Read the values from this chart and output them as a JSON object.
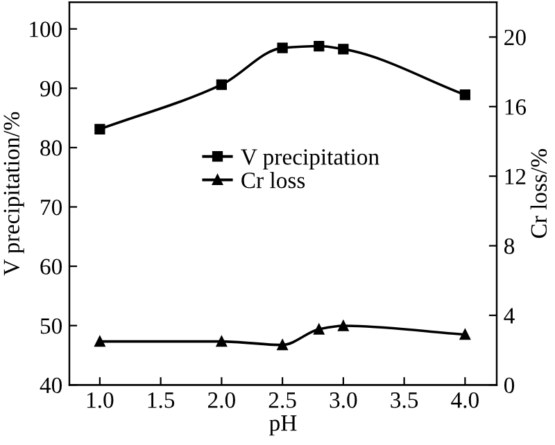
{
  "chart_data": {
    "type": "line",
    "xlabel": "pH",
    "ylabel": "V precipitation/%",
    "y2label": "Cr loss/%",
    "xlim": [
      0.75,
      4.26
    ],
    "xticks": [
      {
        "value": 1.0,
        "label": "1.0"
      },
      {
        "value": 1.5,
        "label": "1.5"
      },
      {
        "value": 2.0,
        "label": "2.0"
      },
      {
        "value": 2.5,
        "label": "2.5"
      },
      {
        "value": 3.0,
        "label": "3.0"
      },
      {
        "value": 3.5,
        "label": "3.5"
      },
      {
        "value": 4.0,
        "label": "4.0"
      }
    ],
    "ylim": [
      40,
      104.5
    ],
    "yticks": [
      40,
      50,
      60,
      70,
      80,
      90,
      100
    ],
    "y2lim": [
      0,
      22
    ],
    "y2ticks": [
      0,
      4,
      8,
      12,
      16,
      20
    ],
    "grid": false,
    "legend": "center",
    "line_style": "solid",
    "series": [
      {
        "name": "V precipitation",
        "color": "#000000",
        "marker": "square",
        "x": [
          1.0,
          2.0,
          2.5,
          2.8,
          3.0,
          4.0
        ],
        "values": [
          83.1,
          90.6,
          96.8,
          97.1,
          96.6,
          88.9
        ]
      },
      {
        "name": "Cr loss",
        "color": "#000000",
        "marker": "triangle",
        "axis": "y2",
        "x": [
          1.0,
          2.0,
          2.5,
          2.8,
          3.0,
          4.0
        ],
        "values": [
          2.5,
          2.5,
          2.3,
          3.2,
          3.4,
          2.9
        ]
      }
    ]
  }
}
